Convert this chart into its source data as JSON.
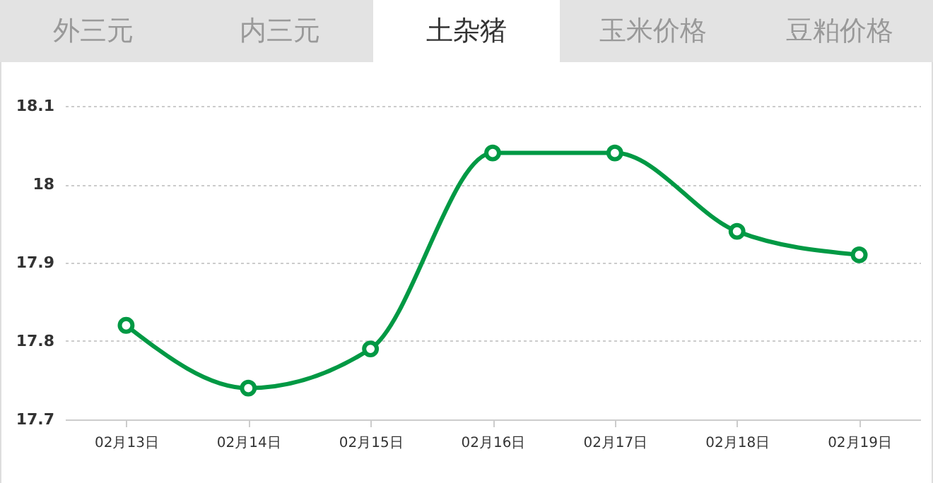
{
  "chart_data": {
    "type": "line",
    "title": "土杂猪",
    "annotations": [
      "外三元",
      "内三元",
      "玉米价格",
      "豆粕价格"
    ],
    "categories": [
      "02月13日",
      "02月14日",
      "02月15日",
      "02月16日",
      "02月17日",
      "02月18日",
      "02月19日"
    ],
    "series": [
      {
        "color": "#009944",
        "values": [
          17.82,
          17.74,
          17.79,
          18.04,
          18.04,
          17.94,
          17.91
        ]
      }
    ],
    "ylim": [
      17.7,
      18.1
    ],
    "yticks": [
      17.7,
      17.8,
      17.9,
      18,
      18.1
    ],
    "grid": "y",
    "marker": "circle",
    "line_style": "solid"
  }
}
